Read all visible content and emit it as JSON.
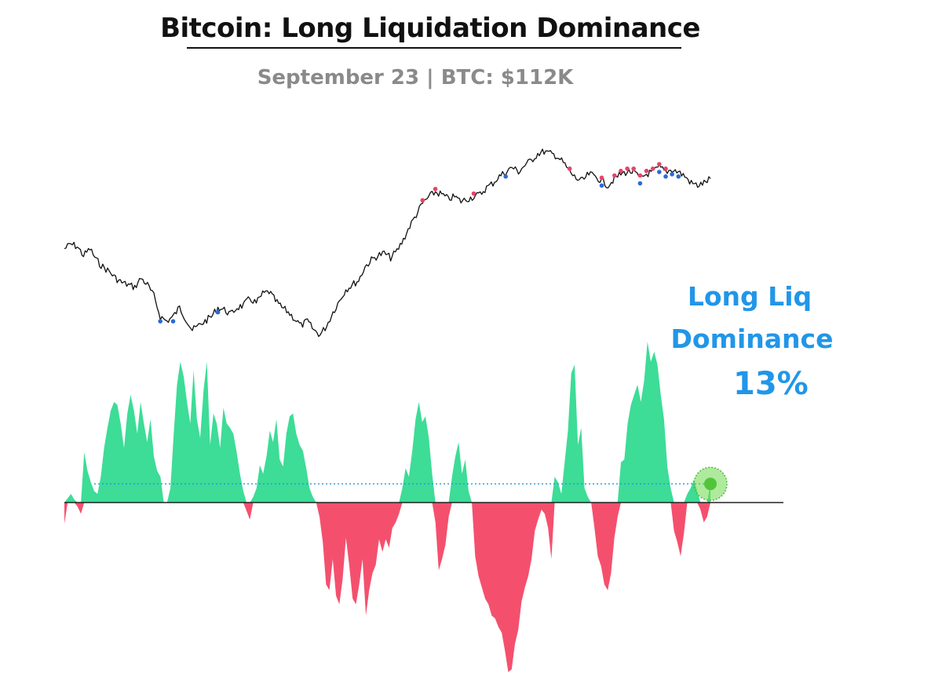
{
  "title": "Bitcoin: Long Liquidation Dominance",
  "subtitle": "September 23 | BTC: $112K",
  "callout": {
    "line1": "Long Liq",
    "line2": "Dominance",
    "value": "13%"
  },
  "colors": {
    "positive": "#3ddc97",
    "negative": "#f4506e",
    "price_line": "#111111",
    "long_liq_marker": "#2a6bd6",
    "short_liq_marker": "#e8436a",
    "callout_text": "#2196e8",
    "reference_line": "#2196e8",
    "highlight_dot": "#6bd84a",
    "subtitle": "#8a8a8a"
  },
  "chart_data": {
    "type": "area",
    "title": "Bitcoin: Long Liquidation Dominance",
    "subtitle": "September 23 | BTC: $112K",
    "xlabel": "",
    "ylabel": "",
    "grid": false,
    "legend": "none",
    "series": [
      {
        "values": [
          -15,
          3,
          6,
          2,
          -3,
          -8,
          35,
          22,
          14,
          8,
          6,
          18,
          38,
          52,
          64,
          70,
          68,
          55,
          38,
          62,
          75,
          64,
          48,
          70,
          55,
          42,
          58,
          32,
          22,
          18,
          0,
          0,
          10,
          48,
          82,
          98,
          88,
          70,
          55,
          92,
          58,
          45,
          78,
          98,
          40,
          62,
          55,
          38,
          66,
          55,
          52,
          48,
          35,
          20,
          8,
          -6,
          -12,
          4,
          10,
          26,
          20,
          32,
          50,
          42,
          58,
          30,
          25,
          48,
          60,
          62,
          48,
          40,
          36,
          24,
          10,
          4,
          0,
          -10,
          -28,
          -58,
          -62,
          -40,
          -66,
          -72,
          -54,
          -25,
          -45,
          -68,
          -72,
          -58,
          -40,
          -80,
          -62,
          -50,
          -44,
          -26,
          -35,
          -26,
          -32,
          -18,
          -14,
          -8,
          10,
          24,
          18,
          36,
          58,
          70,
          56,
          60,
          45,
          20,
          -14,
          -48,
          -40,
          -30,
          -10,
          18,
          32,
          42,
          20,
          30,
          8,
          0,
          -38,
          -52,
          -60,
          -68,
          -72,
          -80,
          -82,
          -88,
          -92,
          -105,
          -120,
          -118,
          -100,
          -90,
          -70,
          -60,
          -52,
          -40,
          -20,
          -12,
          -5,
          -8,
          -18,
          -40,
          18,
          14,
          6,
          28,
          50,
          90,
          96,
          40,
          52,
          10,
          4,
          0,
          -18,
          -38,
          -45,
          -58,
          -62,
          -50,
          -25,
          -10,
          28,
          30,
          55,
          68,
          75,
          82,
          70,
          85,
          112,
          98,
          105,
          96,
          75,
          58,
          25,
          10,
          -20,
          -28,
          -38,
          -22,
          6,
          10,
          16,
          8,
          -5,
          -14,
          -10,
          13
        ],
        "current": 13
      }
    ],
    "reference_level": 13,
    "overlay": {
      "name": "BTC price",
      "values": [
        106,
        108,
        107,
        103,
        106,
        101,
        98,
        96,
        93,
        91,
        90,
        89,
        93,
        90,
        85,
        76,
        74,
        76,
        80,
        75,
        70,
        72,
        74,
        76,
        80,
        79,
        77,
        80,
        81,
        84,
        82,
        86,
        87,
        83,
        80,
        78,
        75,
        72,
        74,
        70,
        68,
        72,
        78,
        83,
        88,
        90,
        92,
        98,
        101,
        103,
        104,
        102,
        105,
        110,
        116,
        121,
        126,
        129,
        131,
        130,
        128,
        129,
        127,
        128,
        129,
        130,
        133,
        135,
        138,
        140,
        142,
        140,
        143,
        145,
        148,
        149,
        148,
        147,
        144,
        140,
        137,
        136,
        139,
        138,
        136,
        134,
        137,
        139,
        140,
        140,
        137,
        139,
        140,
        142,
        140,
        141,
        140,
        138,
        135,
        134,
        135,
        137
      ]
    },
    "long_liquidation_markers": [
      15,
      17,
      24,
      69,
      84,
      90,
      93,
      94,
      95,
      96
    ],
    "short_liquidation_markers": [
      56,
      58,
      64,
      79,
      84,
      86,
      87,
      88,
      89,
      90,
      91,
      92,
      93,
      94
    ]
  }
}
